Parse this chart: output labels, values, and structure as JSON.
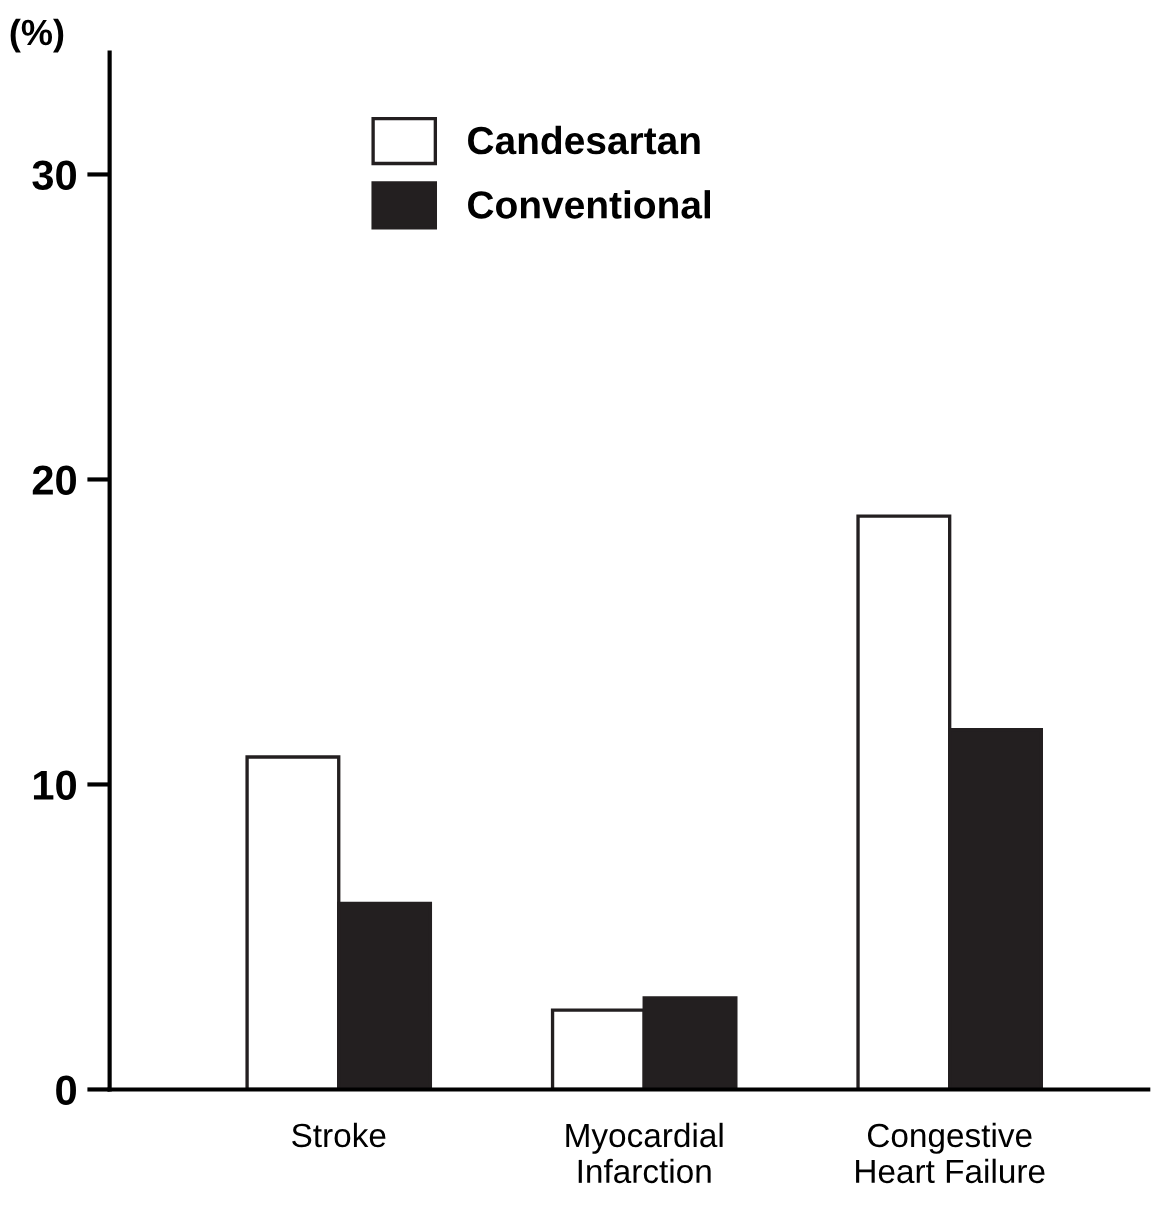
{
  "chart_data": {
    "type": "bar",
    "ylabel": "(%)",
    "categories": [
      "Stroke",
      "Myocardial\nInfarction",
      "Congestive\nHeart Failure"
    ],
    "series": [
      {
        "name": "Candesartan",
        "color": "#ffffff",
        "values": [
          10.9,
          2.6,
          18.8
        ]
      },
      {
        "name": "Conventional",
        "color": "#231f20",
        "values": [
          6.1,
          3.0,
          11.8
        ]
      }
    ],
    "ylim": [
      0,
      34
    ],
    "yticks": [
      0,
      10,
      20,
      30
    ],
    "grid": false,
    "legend": "top"
  }
}
